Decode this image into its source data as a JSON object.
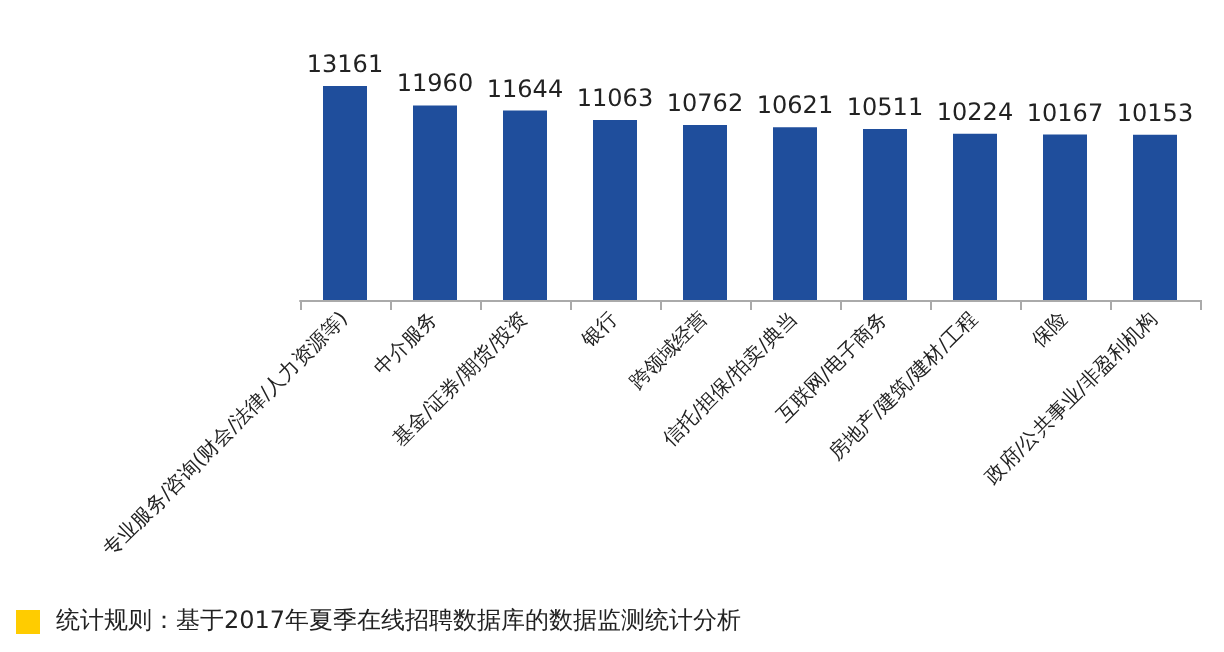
{
  "chart_data": {
    "type": "bar",
    "categories": [
      "专业服务/咨询(财会/法律/人力资源等)",
      "中介服务",
      "基金/证券/期货/投资",
      "银行",
      "跨领域经营",
      "信托/担保/拍卖/典当",
      "互联网/电子商务",
      "房地产/建筑/建材/工程",
      "保险",
      "政府/公共事业/非盈利机构"
    ],
    "values": [
      13161,
      11960,
      11644,
      11063,
      10762,
      10621,
      10511,
      10224,
      10167,
      10153
    ],
    "color": "#1f4e9c",
    "data_labels": true,
    "annotations": [
      "统计规则：基于2017年夏季在线招聘数据库的数据监测统计分析"
    ]
  }
}
